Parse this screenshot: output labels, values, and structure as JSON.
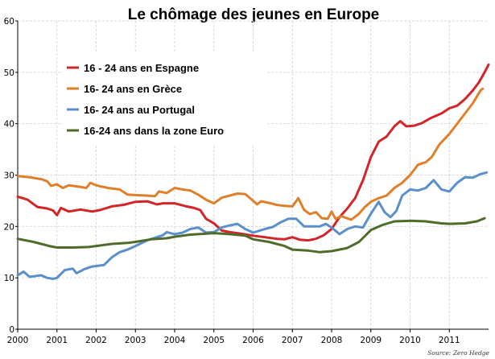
{
  "chart_data": {
    "type": "line",
    "title": "Le chômage des jeunes en Europe",
    "source": "Source: Zero Hedge",
    "xlim": [
      2000,
      2012
    ],
    "ylim": [
      0,
      60
    ],
    "x_ticks": [
      "2000",
      "2001",
      "2002",
      "2003",
      "2004",
      "2005",
      "2006",
      "2007",
      "2008",
      "2009",
      "2010",
      "2011"
    ],
    "y_ticks": [
      "0",
      "10",
      "20",
      "30",
      "40",
      "50",
      "60"
    ],
    "grid": true,
    "legend_position": "top-left",
    "series": [
      {
        "name": "16 - 24 ans en Espagne",
        "color": "#d42428",
        "points": [
          [
            2000,
            25.8
          ],
          [
            2000.25,
            25.2
          ],
          [
            2000.5,
            23.8
          ],
          [
            2000.75,
            23.5
          ],
          [
            2000.9,
            23.1
          ],
          [
            2001,
            22.2
          ],
          [
            2001.1,
            23.6
          ],
          [
            2001.3,
            22.9
          ],
          [
            2001.6,
            23.3
          ],
          [
            2001.9,
            22.9
          ],
          [
            2002.1,
            23.2
          ],
          [
            2002.4,
            23.9
          ],
          [
            2002.7,
            24.2
          ],
          [
            2003,
            24.8
          ],
          [
            2003.3,
            24.9
          ],
          [
            2003.55,
            24.3
          ],
          [
            2003.7,
            24.5
          ],
          [
            2004,
            24.5
          ],
          [
            2004.3,
            23.9
          ],
          [
            2004.5,
            23.6
          ],
          [
            2004.65,
            23.2
          ],
          [
            2004.8,
            21.5
          ],
          [
            2005,
            20.6
          ],
          [
            2005.2,
            19.2
          ],
          [
            2005.4,
            18.9
          ],
          [
            2005.7,
            18.6
          ],
          [
            2006,
            18.2
          ],
          [
            2006.3,
            17.9
          ],
          [
            2006.6,
            17.6
          ],
          [
            2006.8,
            17.5
          ],
          [
            2007,
            17.9
          ],
          [
            2007.2,
            17.4
          ],
          [
            2007.4,
            17.3
          ],
          [
            2007.6,
            17.6
          ],
          [
            2007.8,
            18.3
          ],
          [
            2008,
            19.5
          ],
          [
            2008.2,
            21.8
          ],
          [
            2008.4,
            23.5
          ],
          [
            2008.6,
            25.5
          ],
          [
            2008.8,
            29
          ],
          [
            2009,
            33.5
          ],
          [
            2009.2,
            36.5
          ],
          [
            2009.4,
            37.5
          ],
          [
            2009.6,
            39.5
          ],
          [
            2009.75,
            40.5
          ],
          [
            2009.9,
            39.5
          ],
          [
            2010.1,
            39.6
          ],
          [
            2010.3,
            40.1
          ],
          [
            2010.5,
            41
          ],
          [
            2010.8,
            42
          ],
          [
            2011,
            43
          ],
          [
            2011.2,
            43.5
          ],
          [
            2011.4,
            44.8
          ],
          [
            2011.6,
            46.5
          ],
          [
            2011.75,
            48
          ],
          [
            2011.9,
            50
          ],
          [
            2012,
            51.5
          ]
        ]
      },
      {
        "name": "16- 24 ans en Grèce",
        "color": "#e07f2a",
        "points": [
          [
            2000,
            29.8
          ],
          [
            2000.3,
            29.6
          ],
          [
            2000.6,
            29.2
          ],
          [
            2000.75,
            28.8
          ],
          [
            2000.85,
            27.9
          ],
          [
            2001,
            28.2
          ],
          [
            2001.15,
            27.5
          ],
          [
            2001.3,
            28
          ],
          [
            2001.5,
            27.8
          ],
          [
            2001.75,
            27.5
          ],
          [
            2001.85,
            28.5
          ],
          [
            2002,
            28
          ],
          [
            2002.3,
            27.5
          ],
          [
            2002.6,
            27.2
          ],
          [
            2002.8,
            26.2
          ],
          [
            2003,
            26.1
          ],
          [
            2003.3,
            26
          ],
          [
            2003.5,
            25.9
          ],
          [
            2003.6,
            26.8
          ],
          [
            2003.8,
            26.5
          ],
          [
            2004,
            27.5
          ],
          [
            2004.2,
            27.2
          ],
          [
            2004.4,
            27
          ],
          [
            2004.6,
            26.2
          ],
          [
            2004.8,
            25.2
          ],
          [
            2005,
            24.5
          ],
          [
            2005.2,
            25.6
          ],
          [
            2005.4,
            26
          ],
          [
            2005.6,
            26.4
          ],
          [
            2005.8,
            26.3
          ],
          [
            2006,
            25
          ],
          [
            2006.1,
            24.3
          ],
          [
            2006.2,
            24.9
          ],
          [
            2006.4,
            24.6
          ],
          [
            2006.6,
            24.2
          ],
          [
            2006.8,
            24
          ],
          [
            2007,
            23.9
          ],
          [
            2007.15,
            25.5
          ],
          [
            2007.3,
            23.2
          ],
          [
            2007.45,
            22.4
          ],
          [
            2007.6,
            22.8
          ],
          [
            2007.75,
            21.6
          ],
          [
            2007.9,
            21.5
          ],
          [
            2008,
            22.9
          ],
          [
            2008.1,
            21.5
          ],
          [
            2008.25,
            22
          ],
          [
            2008.5,
            21.3
          ],
          [
            2008.7,
            22.5
          ],
          [
            2008.85,
            23.8
          ],
          [
            2009,
            24.8
          ],
          [
            2009.2,
            25.5
          ],
          [
            2009.4,
            26
          ],
          [
            2009.6,
            27.5
          ],
          [
            2009.8,
            28.5
          ],
          [
            2010,
            30
          ],
          [
            2010.2,
            32
          ],
          [
            2010.4,
            32.5
          ],
          [
            2010.55,
            33.5
          ],
          [
            2010.75,
            36
          ],
          [
            2011,
            38
          ],
          [
            2011.2,
            40
          ],
          [
            2011.4,
            42
          ],
          [
            2011.6,
            44
          ],
          [
            2011.8,
            46.5
          ],
          [
            2011.85,
            46.8
          ]
        ]
      },
      {
        "name": "16- 24 ans au Portugal",
        "color": "#5a8fcb",
        "points": [
          [
            2000,
            10.5
          ],
          [
            2000.15,
            11.2
          ],
          [
            2000.3,
            10.2
          ],
          [
            2000.6,
            10.5
          ],
          [
            2000.75,
            10
          ],
          [
            2000.9,
            9.8
          ],
          [
            2001,
            10
          ],
          [
            2001.2,
            11.5
          ],
          [
            2001.4,
            11.8
          ],
          [
            2001.5,
            10.9
          ],
          [
            2001.7,
            11.7
          ],
          [
            2001.9,
            12.2
          ],
          [
            2002.2,
            12.5
          ],
          [
            2002.4,
            14
          ],
          [
            2002.6,
            15
          ],
          [
            2002.8,
            15.5
          ],
          [
            2003,
            16.2
          ],
          [
            2003.3,
            17.3
          ],
          [
            2003.5,
            17.8
          ],
          [
            2003.7,
            18.3
          ],
          [
            2003.8,
            18.9
          ],
          [
            2004,
            18.5
          ],
          [
            2004.2,
            18.8
          ],
          [
            2004.4,
            19.5
          ],
          [
            2004.6,
            19.8
          ],
          [
            2004.8,
            18.8
          ],
          [
            2005,
            18.9
          ],
          [
            2005.2,
            19.8
          ],
          [
            2005.4,
            20.2
          ],
          [
            2005.6,
            20.5
          ],
          [
            2005.8,
            19.5
          ],
          [
            2006,
            18.8
          ],
          [
            2006.3,
            19.5
          ],
          [
            2006.5,
            19.9
          ],
          [
            2006.7,
            20.8
          ],
          [
            2006.9,
            21.5
          ],
          [
            2007.1,
            21.5
          ],
          [
            2007.3,
            20
          ],
          [
            2007.5,
            20
          ],
          [
            2007.7,
            20
          ],
          [
            2007.85,
            20.5
          ],
          [
            2008,
            19.8
          ],
          [
            2008.2,
            18.5
          ],
          [
            2008.4,
            19.5
          ],
          [
            2008.6,
            20
          ],
          [
            2008.8,
            19.8
          ],
          [
            2009,
            22.5
          ],
          [
            2009.2,
            24.8
          ],
          [
            2009.35,
            22.8
          ],
          [
            2009.5,
            21.8
          ],
          [
            2009.65,
            23
          ],
          [
            2009.8,
            26
          ],
          [
            2010,
            27.2
          ],
          [
            2010.2,
            27
          ],
          [
            2010.4,
            27.5
          ],
          [
            2010.6,
            29
          ],
          [
            2010.8,
            27.2
          ],
          [
            2011,
            26.8
          ],
          [
            2011.2,
            28.5
          ],
          [
            2011.4,
            29.6
          ],
          [
            2011.6,
            29.5
          ],
          [
            2011.8,
            30.2
          ],
          [
            2011.95,
            30.5
          ]
        ]
      },
      {
        "name": "16-24 ans dans la zone Euro",
        "color": "#4f6b2a",
        "points": [
          [
            2000,
            17.6
          ],
          [
            2000.4,
            17
          ],
          [
            2000.8,
            16.2
          ],
          [
            2001,
            15.9
          ],
          [
            2001.4,
            15.9
          ],
          [
            2001.8,
            16
          ],
          [
            2002,
            16.2
          ],
          [
            2002.4,
            16.6
          ],
          [
            2002.8,
            16.8
          ],
          [
            2003,
            17
          ],
          [
            2003.4,
            17.5
          ],
          [
            2003.8,
            17.7
          ],
          [
            2004,
            18
          ],
          [
            2004.4,
            18.4
          ],
          [
            2004.8,
            18.6
          ],
          [
            2005,
            18.7
          ],
          [
            2005.4,
            18.5
          ],
          [
            2005.8,
            18.2
          ],
          [
            2006,
            17.5
          ],
          [
            2006.4,
            17
          ],
          [
            2006.8,
            16.2
          ],
          [
            2007,
            15.5
          ],
          [
            2007.4,
            15.3
          ],
          [
            2007.7,
            15
          ],
          [
            2008,
            15.2
          ],
          [
            2008.4,
            15.8
          ],
          [
            2008.7,
            17
          ],
          [
            2009,
            19.3
          ],
          [
            2009.3,
            20.3
          ],
          [
            2009.6,
            21
          ],
          [
            2010,
            21.1
          ],
          [
            2010.4,
            21
          ],
          [
            2010.8,
            20.6
          ],
          [
            2011,
            20.5
          ],
          [
            2011.4,
            20.6
          ],
          [
            2011.7,
            21
          ],
          [
            2011.9,
            21.6
          ]
        ]
      }
    ]
  }
}
